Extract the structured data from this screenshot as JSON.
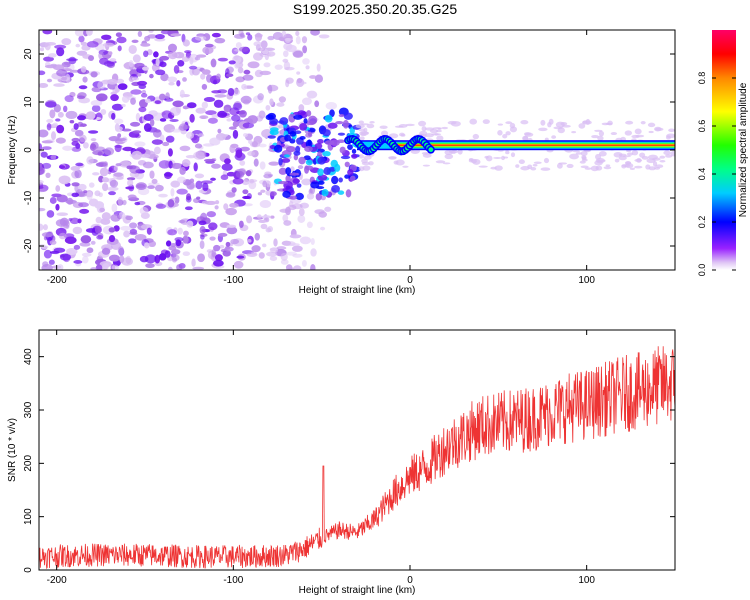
{
  "title": "S199.2025.350.20.35.G25",
  "chart_data": [
    {
      "type": "heatmap",
      "xlabel": "Height of straight line (km)",
      "ylabel": "Frequency (Hz)",
      "xlim": [
        -210,
        150
      ],
      "ylim": [
        -25,
        25
      ],
      "xticks": [
        -200,
        -100,
        0,
        100
      ],
      "yticks": [
        -20,
        -10,
        0,
        10,
        20
      ],
      "colorbar": {
        "label": "Normalized spectral amplitude",
        "range": [
          0,
          1
        ],
        "ticks": [
          0.0,
          0.2,
          0.4,
          0.6,
          0.8
        ]
      },
      "features": {
        "noise_region_x": [
          -210,
          -65
        ],
        "transition_region_x": [
          -80,
          -30
        ],
        "signal_line_x": [
          -30,
          150
        ],
        "signal_line_frequency_hz": 1.0
      }
    },
    {
      "type": "line",
      "xlabel": "Height of straight line (km)",
      "ylabel": "SNR (10 * v/v)",
      "xlim": [
        -210,
        150
      ],
      "ylim": [
        0,
        450
      ],
      "xticks": [
        -200,
        -100,
        0,
        100
      ],
      "yticks": [
        0,
        100,
        200,
        300,
        400
      ],
      "series": [
        {
          "name": "SNR",
          "color": "#ee3333",
          "x": [
            -210,
            -180,
            -150,
            -120,
            -90,
            -70,
            -60,
            -50,
            -40,
            -30,
            -20,
            -10,
            0,
            10,
            20,
            30,
            40,
            50,
            60,
            70,
            80,
            90,
            100,
            110,
            120,
            130,
            140,
            150
          ],
          "y": [
            25,
            28,
            28,
            25,
            25,
            28,
            40,
            60,
            75,
            70,
            95,
            140,
            175,
            195,
            230,
            250,
            270,
            275,
            280,
            285,
            295,
            305,
            310,
            320,
            330,
            335,
            345,
            350
          ]
        }
      ],
      "spike": {
        "x": -49,
        "y": 195
      }
    }
  ]
}
